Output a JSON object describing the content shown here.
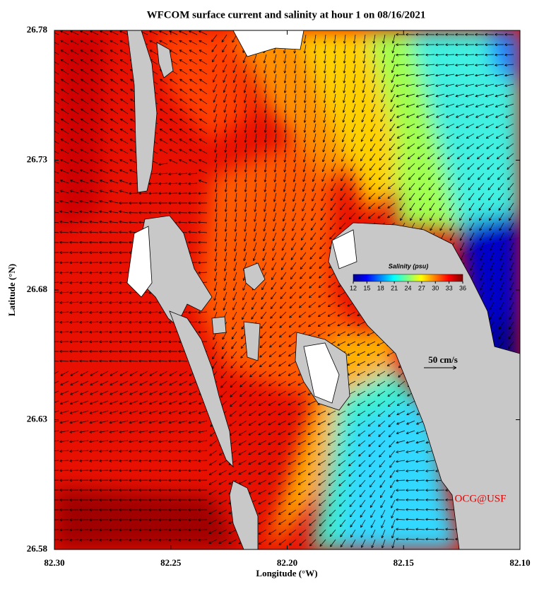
{
  "chart_data": {
    "type": "map",
    "title": "WFCOM surface current and salinity at hour 1 on 08/16/2021",
    "x_label": "Longitude (°W)",
    "y_label": "Latitude (°N)",
    "xlim": [
      82.3,
      82.1
    ],
    "xticks": [
      {
        "value": 82.3,
        "label": "82.30"
      },
      {
        "value": 82.25,
        "label": "82.25"
      },
      {
        "value": 82.2,
        "label": "82.20"
      },
      {
        "value": 82.15,
        "label": "82.15"
      },
      {
        "value": 82.1,
        "label": "82.10"
      }
    ],
    "ylim": [
      26.58,
      26.78
    ],
    "yticks": [
      26.58,
      26.63,
      26.68,
      26.73,
      26.78
    ],
    "colorbar": {
      "label": "Salinity (psu)",
      "lim": [
        12,
        36
      ],
      "ticks": [
        12,
        15,
        18,
        21,
        24,
        27,
        30,
        33,
        36
      ]
    },
    "scale_arrow": {
      "label": "50 cm/s"
    },
    "credit": "OCG@USF"
  }
}
